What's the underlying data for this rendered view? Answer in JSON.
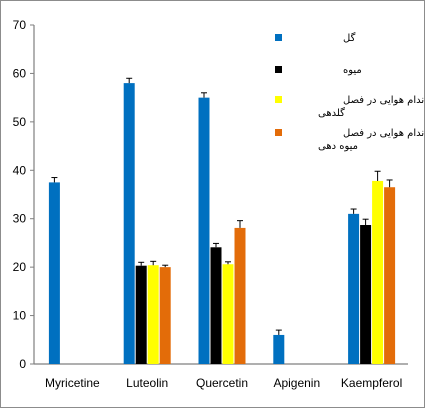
{
  "chart_data": {
    "type": "bar",
    "title": "",
    "xlabel": "",
    "ylabel": "",
    "ylim": [
      0,
      70
    ],
    "yticks": [
      0,
      10,
      20,
      30,
      40,
      50,
      60,
      70
    ],
    "grid": false,
    "legend_position": "top-right",
    "categories": [
      "Myricetine",
      "Luteolin",
      "Quercetin",
      "Apigenin",
      "Kaempferol"
    ],
    "series": [
      {
        "name": "گل",
        "color": "#0070C0",
        "values": [
          37.5,
          58,
          55,
          6,
          31
        ],
        "errors": [
          1,
          1,
          1,
          1,
          1
        ]
      },
      {
        "name": "میوه",
        "color": "#000000",
        "values": [
          0,
          20.3,
          24.1,
          0,
          28.7
        ],
        "errors": [
          0,
          0.7,
          0.8,
          0,
          1.2
        ]
      },
      {
        "name": "اندام هوایی در فصل گلدهی",
        "color": "#FFFF00",
        "values": [
          0,
          20.4,
          20.6,
          0,
          37.8
        ],
        "errors": [
          0,
          0.8,
          0.5,
          0,
          2
        ]
      },
      {
        "name": "اندام هوایی در فصل میوه دهی",
        "color": "#E36C09",
        "values": [
          0,
          20,
          28.1,
          0,
          36.5
        ],
        "errors": [
          0,
          0.4,
          1.5,
          0,
          1.5
        ]
      }
    ]
  }
}
